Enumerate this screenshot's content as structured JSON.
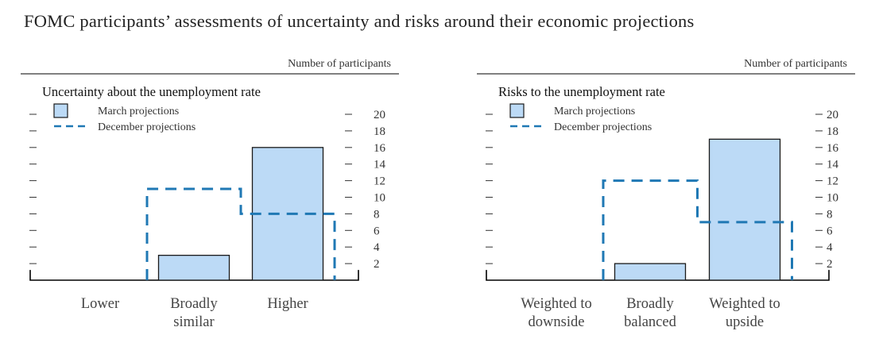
{
  "title": "FOMC participants’ assessments of uncertainty and risks around their economic projections",
  "colors": {
    "bar_fill": "#bcdaf6",
    "bar_stroke": "#1a1a1a",
    "dashed_line": "#1f78b4",
    "text": "#333333"
  },
  "chart_data": [
    {
      "type": "bar",
      "title": "Uncertainty about the unemployment rate",
      "units_label": "Number of participants",
      "categories": [
        [
          "Lower"
        ],
        [
          "Broadly",
          "similar"
        ],
        [
          "Higher"
        ]
      ],
      "yticks": [
        2,
        4,
        6,
        8,
        10,
        12,
        14,
        16,
        18,
        20
      ],
      "ylim": [
        0,
        20
      ],
      "series": [
        {
          "name": "March projections",
          "style": "bar",
          "values": [
            0,
            3,
            16
          ]
        },
        {
          "name": "December projections",
          "style": "dashed-step",
          "values": [
            0,
            11,
            8
          ]
        }
      ],
      "legend_position": "top-left",
      "grid": false
    },
    {
      "type": "bar",
      "title": "Risks to the unemployment rate",
      "units_label": "Number of participants",
      "categories": [
        [
          "Weighted to",
          "downside"
        ],
        [
          "Broadly",
          "balanced"
        ],
        [
          "Weighted to",
          "upside"
        ]
      ],
      "yticks": [
        2,
        4,
        6,
        8,
        10,
        12,
        14,
        16,
        18,
        20
      ],
      "ylim": [
        0,
        20
      ],
      "series": [
        {
          "name": "March projections",
          "style": "bar",
          "values": [
            0,
            2,
            17
          ]
        },
        {
          "name": "December projections",
          "style": "dashed-step",
          "values": [
            0,
            12,
            7
          ]
        }
      ],
      "legend_position": "top-left",
      "grid": false
    }
  ]
}
